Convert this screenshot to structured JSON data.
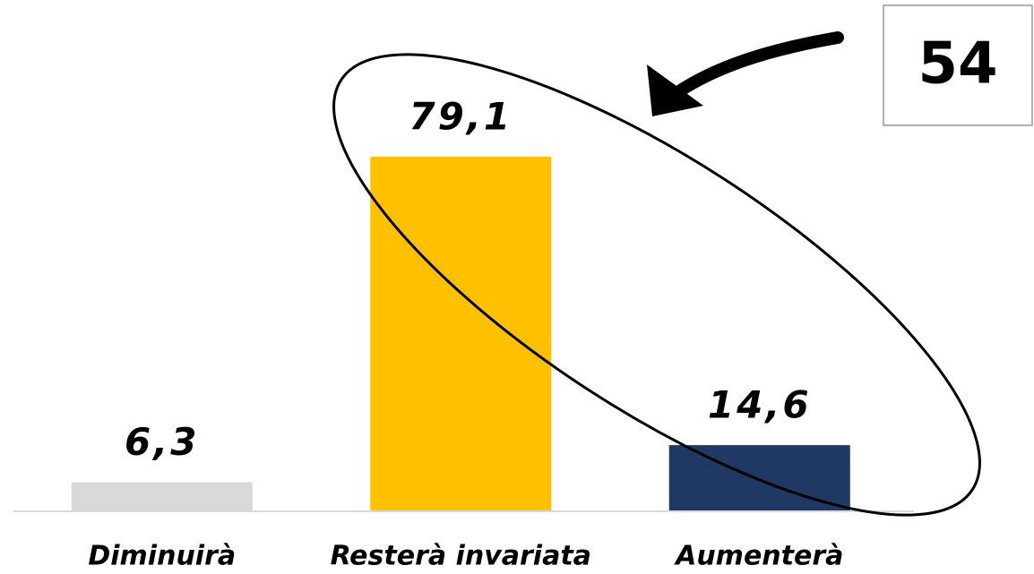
{
  "chart_data": {
    "type": "bar",
    "categories": [
      "Diminuirà",
      "Resterà invariata",
      "Aumenterà"
    ],
    "values": [
      6.3,
      79.1,
      14.6
    ],
    "value_labels": [
      "6,3",
      "79,1",
      "14,6"
    ],
    "colors": [
      "#d9d9d9",
      "#ffc000",
      "#203864"
    ],
    "annotation": "54"
  }
}
